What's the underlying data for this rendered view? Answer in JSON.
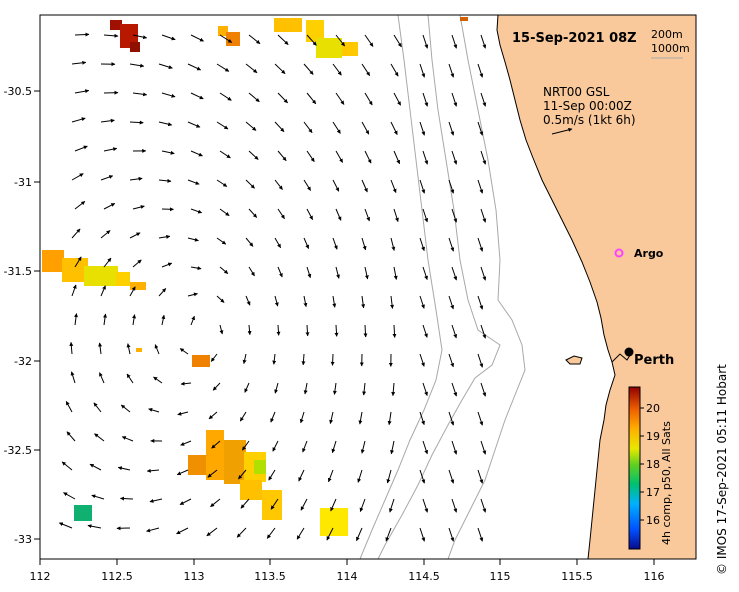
{
  "title": "15-Sep-2021 08Z",
  "depth_legend": [
    "200m",
    "1000m"
  ],
  "current_source": "NRT00 GSL",
  "current_date": "11-Sep 00:00Z",
  "current_scale": "0.5m/s (1kt 6h)",
  "argo_label": "Argo",
  "city_label": "Perth",
  "credit": "© IMOS 17-Sep-2021 05:11 Hobart",
  "colorbar": {
    "label": "4h comp, p50, All Sats",
    "ticks": [
      "20",
      "19",
      "18",
      "17",
      "16"
    ]
  },
  "axes": {
    "x_ticks": [
      "112",
      "112.5",
      "113",
      "113.5",
      "114",
      "114.5",
      "115",
      "115.5",
      "116"
    ],
    "y_ticks": [
      "-30.5",
      "-31",
      "-31.5",
      "-32",
      "-32.5",
      "-33"
    ]
  },
  "colors": {
    "land": "#f9c89b",
    "ocean": "#ffffff",
    "bathymetry": "#a8a8a8",
    "argo": "#ff44ff"
  }
}
